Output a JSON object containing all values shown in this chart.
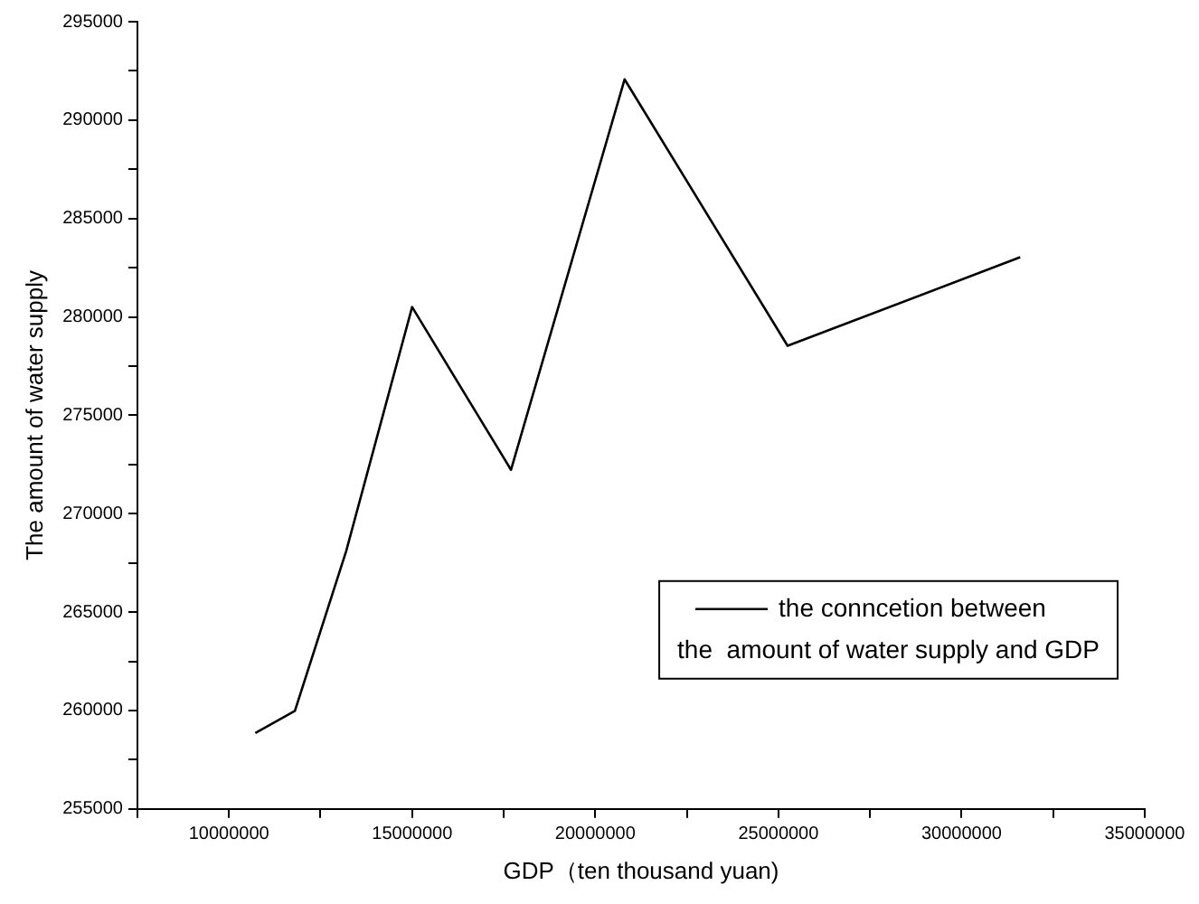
{
  "chart_data": {
    "type": "line",
    "xlabel": "GDP（ten thousand yuan)",
    "ylabel": "The amount of water supply",
    "x": [
      10720000,
      11800000,
      13200000,
      15000000,
      17700000,
      20800000,
      25250000,
      31600000
    ],
    "series": [
      {
        "name": "the conncetion between\nthe  amount of water supply and GDP",
        "color": "#000000",
        "values": [
          258860,
          259980,
          268100,
          280500,
          272230,
          292070,
          278530,
          283030
        ]
      }
    ],
    "xlim": [
      7500000,
      35000000
    ],
    "xticks": [
      {
        "value": 7500000,
        "label": null
      },
      10000000,
      {
        "value": 12500000,
        "label": null
      },
      15000000,
      {
        "value": 17500000,
        "label": null
      },
      20000000,
      {
        "value": 22500000,
        "label": null
      },
      25000000,
      {
        "value": 27500000,
        "label": null
      },
      30000000,
      {
        "value": 32500000,
        "label": null
      },
      35000000
    ],
    "ylim": [
      255000,
      295000
    ],
    "yticks": [
      255000,
      {
        "value": 257500,
        "label": null
      },
      260000,
      {
        "value": 262500,
        "label": null
      },
      265000,
      {
        "value": 267500,
        "label": null
      },
      270000,
      {
        "value": 272500,
        "label": null
      },
      275000,
      {
        "value": 277500,
        "label": null
      },
      280000,
      {
        "value": 282500,
        "label": null
      },
      285000,
      {
        "value": 287500,
        "label": null
      },
      290000,
      {
        "value": 292500,
        "label": null
      },
      295000
    ],
    "grid": false,
    "legend": "bottom right",
    "marker": "none",
    "line_style": "solid"
  }
}
